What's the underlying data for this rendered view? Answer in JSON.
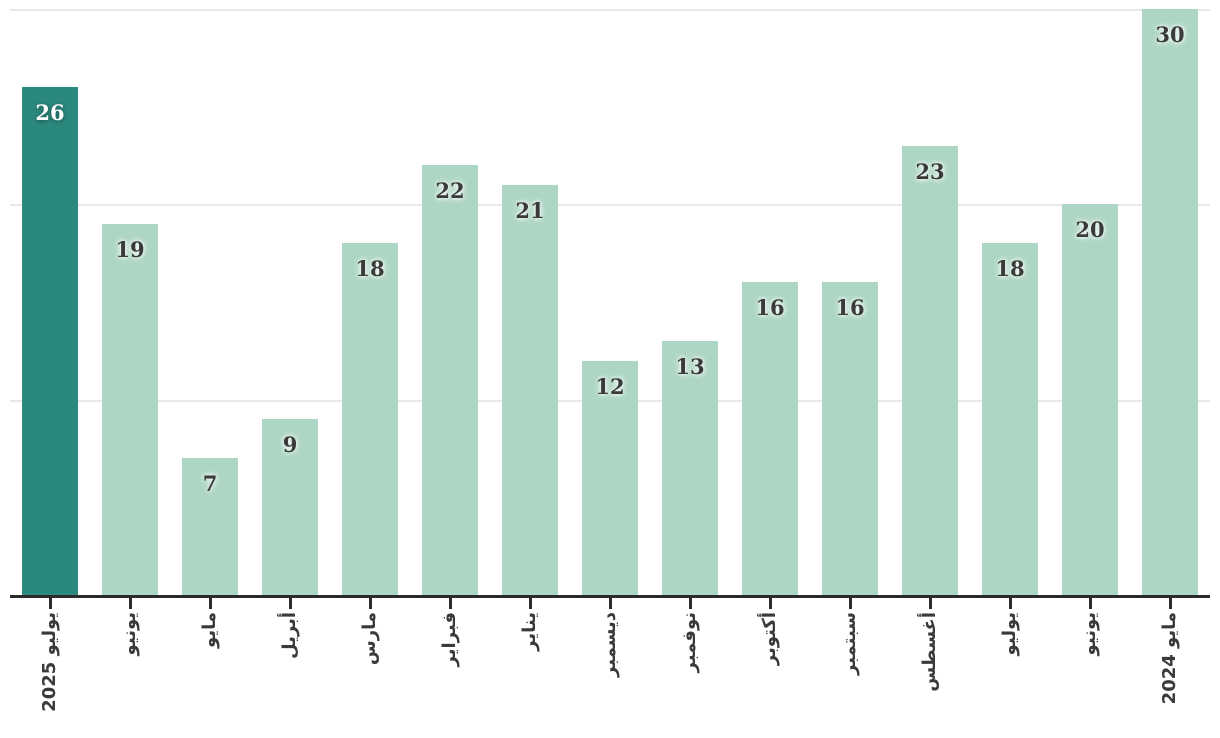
{
  "chart_data": {
    "type": "bar",
    "categories": [
      "يوليو 2025",
      "يونيو",
      "مايو",
      "أبريل",
      "مارس",
      "فبراير",
      "يناير",
      "ديسمبر",
      "نوفمبر",
      "أكتوبر",
      "سبتمبر",
      "أغسطس",
      "يوليو",
      "يونيو",
      "مايو 2024"
    ],
    "values": [
      26,
      19,
      7,
      9,
      18,
      22,
      21,
      12,
      13,
      16,
      16,
      23,
      18,
      20,
      30
    ],
    "title": "",
    "xlabel": "",
    "ylabel": "",
    "ylim": [
      0,
      30
    ],
    "gridline_values": [
      10,
      20,
      30
    ],
    "grid": "horizontal-only",
    "legend": "none",
    "bar_value_labels": true,
    "highlighted_index": 0,
    "colors": {
      "bar_default": "#aed6c4",
      "bar_highlight": "#2b887c",
      "value_label_default": "#3a3a3a",
      "value_label_highlight": "#ffffff",
      "gridline": "#e9e9e9",
      "axis": "#2b2b2b",
      "tick_label": "#3a3a3a",
      "background": "#ffffff"
    }
  }
}
